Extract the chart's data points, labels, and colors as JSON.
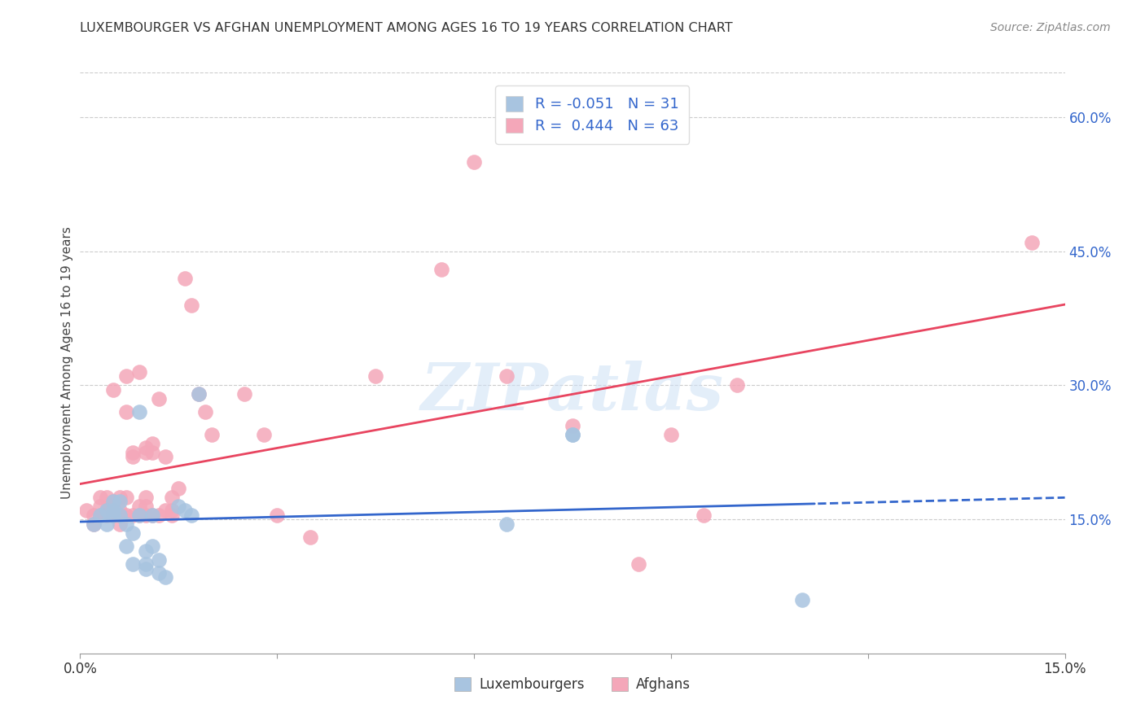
{
  "title": "LUXEMBOURGER VS AFGHAN UNEMPLOYMENT AMONG AGES 16 TO 19 YEARS CORRELATION CHART",
  "source": "Source: ZipAtlas.com",
  "ylabel": "Unemployment Among Ages 16 to 19 years",
  "xlim": [
    0.0,
    0.15
  ],
  "ylim": [
    0.0,
    0.65
  ],
  "x_ticks": [
    0.0,
    0.03,
    0.06,
    0.09,
    0.12,
    0.15
  ],
  "y_ticks_right": [
    0.15,
    0.3,
    0.45,
    0.6
  ],
  "y_tick_labels_right": [
    "15.0%",
    "30.0%",
    "45.0%",
    "60.0%"
  ],
  "lux_R": "-0.051",
  "lux_N": "31",
  "afg_R": "0.444",
  "afg_N": "63",
  "lux_color": "#a8c4e0",
  "afg_color": "#f4a7b9",
  "lux_line_color": "#3366cc",
  "afg_line_color": "#e84560",
  "background_color": "#ffffff",
  "grid_color": "#cccccc",
  "watermark": "ZIPatlas",
  "lux_x": [
    0.002,
    0.003,
    0.004,
    0.004,
    0.005,
    0.005,
    0.005,
    0.006,
    0.006,
    0.007,
    0.007,
    0.008,
    0.008,
    0.009,
    0.009,
    0.01,
    0.01,
    0.01,
    0.011,
    0.011,
    0.012,
    0.012,
    0.013,
    0.015,
    0.016,
    0.017,
    0.018,
    0.065,
    0.075,
    0.075,
    0.11
  ],
  "lux_y": [
    0.145,
    0.155,
    0.16,
    0.145,
    0.16,
    0.155,
    0.17,
    0.155,
    0.17,
    0.145,
    0.12,
    0.135,
    0.1,
    0.27,
    0.155,
    0.115,
    0.1,
    0.095,
    0.155,
    0.12,
    0.105,
    0.09,
    0.085,
    0.165,
    0.16,
    0.155,
    0.29,
    0.145,
    0.245,
    0.245,
    0.06
  ],
  "afg_x": [
    0.001,
    0.002,
    0.002,
    0.003,
    0.003,
    0.003,
    0.004,
    0.004,
    0.004,
    0.005,
    0.005,
    0.005,
    0.005,
    0.005,
    0.006,
    0.006,
    0.006,
    0.006,
    0.007,
    0.007,
    0.007,
    0.007,
    0.008,
    0.008,
    0.008,
    0.009,
    0.009,
    0.009,
    0.01,
    0.01,
    0.01,
    0.01,
    0.01,
    0.011,
    0.011,
    0.011,
    0.012,
    0.012,
    0.013,
    0.013,
    0.014,
    0.014,
    0.014,
    0.015,
    0.016,
    0.017,
    0.018,
    0.019,
    0.02,
    0.025,
    0.028,
    0.03,
    0.035,
    0.045,
    0.055,
    0.06,
    0.065,
    0.075,
    0.085,
    0.09,
    0.095,
    0.1,
    0.145
  ],
  "afg_y": [
    0.16,
    0.155,
    0.145,
    0.155,
    0.175,
    0.165,
    0.16,
    0.175,
    0.155,
    0.16,
    0.165,
    0.155,
    0.295,
    0.17,
    0.155,
    0.16,
    0.175,
    0.145,
    0.155,
    0.175,
    0.27,
    0.31,
    0.155,
    0.225,
    0.22,
    0.155,
    0.165,
    0.315,
    0.155,
    0.225,
    0.23,
    0.165,
    0.175,
    0.155,
    0.225,
    0.235,
    0.155,
    0.285,
    0.16,
    0.22,
    0.16,
    0.175,
    0.155,
    0.185,
    0.42,
    0.39,
    0.29,
    0.27,
    0.245,
    0.29,
    0.245,
    0.155,
    0.13,
    0.31,
    0.43,
    0.55,
    0.31,
    0.255,
    0.1,
    0.245,
    0.155,
    0.3,
    0.46
  ]
}
